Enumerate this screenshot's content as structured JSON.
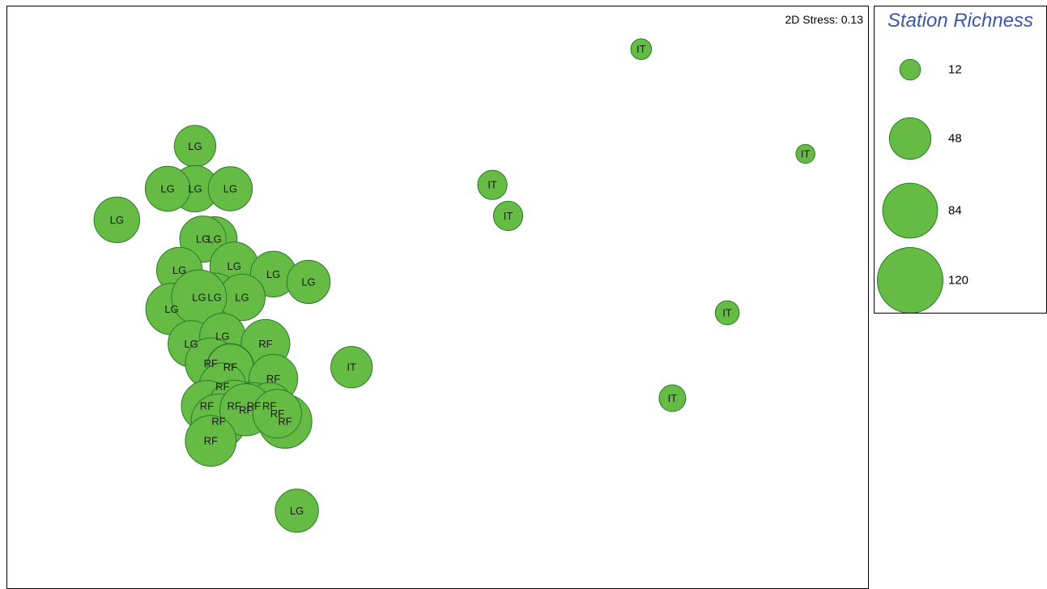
{
  "chart_data": {
    "type": "scatter",
    "title": "",
    "xlabel": "",
    "ylabel": "",
    "xlim": [
      -1.1,
      1.1
    ],
    "ylim": [
      -1.0,
      0.5
    ],
    "grid": false,
    "annotation": "2D Stress: 0.13",
    "size_legend": {
      "title": "Station Richness",
      "position": "right",
      "entries": [
        {
          "label": "12",
          "value": 12
        },
        {
          "label": "48",
          "value": 48
        },
        {
          "label": "84",
          "value": 84
        },
        {
          "label": "120",
          "value": 120
        }
      ]
    },
    "colors": {
      "fill": "#66bb44",
      "stroke": "#2a7a2a",
      "legend_title": "#3f56a7"
    },
    "points": [
      {
        "label": "IT",
        "x": 0.52,
        "y": 0.39,
        "size": 12
      },
      {
        "label": "IT",
        "x": 0.94,
        "y": 0.12,
        "size": 10
      },
      {
        "label": "IT",
        "x": 0.14,
        "y": 0.04,
        "size": 24
      },
      {
        "label": "IT",
        "x": 0.18,
        "y": -0.04,
        "size": 24
      },
      {
        "label": "IT",
        "x": 0.74,
        "y": -0.29,
        "size": 16
      },
      {
        "label": "IT",
        "x": 0.6,
        "y": -0.51,
        "size": 20
      },
      {
        "label": "IT",
        "x": -0.22,
        "y": -0.43,
        "size": 48
      },
      {
        "label": "LG",
        "x": -0.62,
        "y": 0.14,
        "size": 48
      },
      {
        "label": "LG",
        "x": -0.62,
        "y": 0.03,
        "size": 60
      },
      {
        "label": "LG",
        "x": -0.69,
        "y": 0.03,
        "size": 56
      },
      {
        "label": "LG",
        "x": -0.53,
        "y": 0.03,
        "size": 54
      },
      {
        "label": "LG",
        "x": -0.36,
        "y": -0.8,
        "size": 52
      },
      {
        "label": "LG",
        "x": -0.57,
        "y": -0.1,
        "size": 56
      },
      {
        "label": "LG",
        "x": -0.6,
        "y": -0.1,
        "size": 60
      },
      {
        "label": "LG",
        "x": -0.52,
        "y": -0.17,
        "size": 66
      },
      {
        "label": "LG",
        "x": -0.42,
        "y": -0.19,
        "size": 58
      },
      {
        "label": "LG",
        "x": -0.82,
        "y": -0.05,
        "size": 58
      },
      {
        "label": "LG",
        "x": -0.33,
        "y": -0.21,
        "size": 52
      },
      {
        "label": "LG",
        "x": -0.66,
        "y": -0.18,
        "size": 58
      },
      {
        "label": "LG",
        "x": -0.68,
        "y": -0.28,
        "size": 74
      },
      {
        "label": "LG",
        "x": -0.57,
        "y": -0.25,
        "size": 66
      },
      {
        "label": "LG",
        "x": -0.5,
        "y": -0.25,
        "size": 60
      },
      {
        "label": "LG",
        "x": -0.61,
        "y": -0.25,
        "size": 84
      },
      {
        "label": "LG",
        "x": -0.63,
        "y": -0.37,
        "size": 60
      },
      {
        "label": "LG",
        "x": -0.55,
        "y": -0.35,
        "size": 58
      },
      {
        "label": "RF",
        "x": -0.44,
        "y": -0.37,
        "size": 66
      },
      {
        "label": "RF",
        "x": -0.58,
        "y": -0.42,
        "size": 72
      },
      {
        "label": "RF",
        "x": -0.53,
        "y": -0.43,
        "size": 62
      },
      {
        "label": "RF",
        "x": -0.53,
        "y": -0.43,
        "size": 60
      },
      {
        "label": "RF",
        "x": -0.55,
        "y": -0.48,
        "size": 62
      },
      {
        "label": "RF",
        "x": -0.42,
        "y": -0.46,
        "size": 66
      },
      {
        "label": "RF",
        "x": -0.59,
        "y": -0.53,
        "size": 72
      },
      {
        "label": "RF",
        "x": -0.52,
        "y": -0.53,
        "size": 74
      },
      {
        "label": "RF",
        "x": -0.47,
        "y": -0.53,
        "size": 60
      },
      {
        "label": "RF",
        "x": -0.43,
        "y": -0.53,
        "size": 60
      },
      {
        "label": "RF",
        "x": -0.56,
        "y": -0.57,
        "size": 84
      },
      {
        "label": "RF",
        "x": -0.49,
        "y": -0.54,
        "size": 76
      },
      {
        "label": "RF",
        "x": -0.39,
        "y": -0.57,
        "size": 80
      },
      {
        "label": "RF",
        "x": -0.58,
        "y": -0.62,
        "size": 72
      },
      {
        "label": "RF",
        "x": -0.41,
        "y": -0.55,
        "size": 66
      }
    ]
  }
}
